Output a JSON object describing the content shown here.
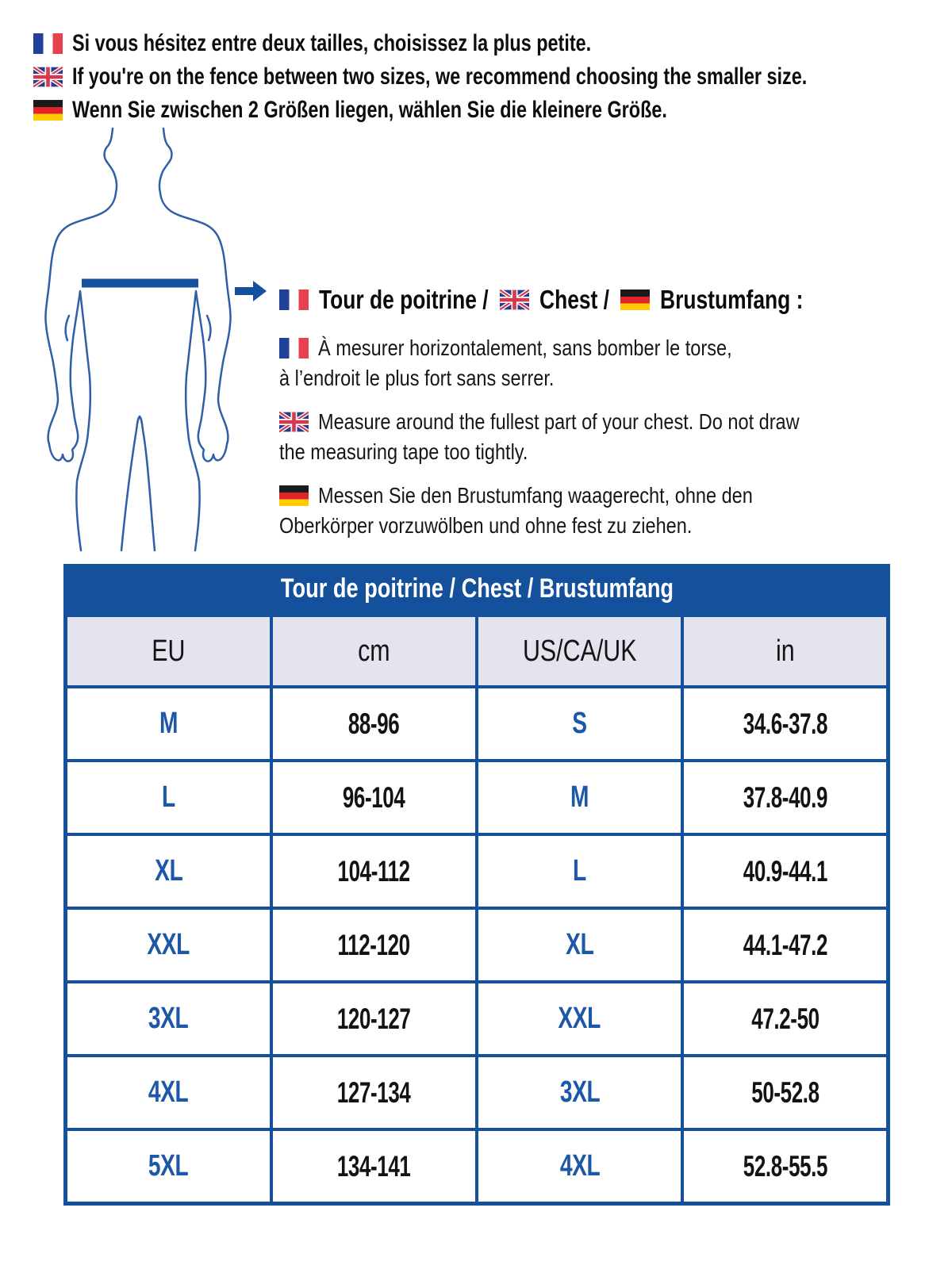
{
  "colors": {
    "table_blue": "#14509b",
    "cell_text_blue": "#1d57a8",
    "header_row_bg": "#e3e4ee",
    "silhouette_stroke": "#2e5fa8",
    "fr_blue": "#21409a",
    "fr_red": "#e8404f",
    "de_black": "#1a1a1a",
    "de_red": "#e1232b",
    "de_gold": "#ffcb00",
    "uk_navy": "#2b3a8c",
    "uk_red": "#d43a4d"
  },
  "icons": {
    "arrow": "right-arrow-icon",
    "figure": "male-body-outline",
    "flags": [
      "france-flag-icon",
      "uk-flag-icon",
      "germany-flag-icon"
    ]
  },
  "notes": [
    {
      "flag": "france",
      "text": "Si vous hésitez entre deux tailles, choisissez la plus petite."
    },
    {
      "flag": "uk",
      "text": "If you're on the fence between two sizes, we recommend choosing the smaller size."
    },
    {
      "flag": "germany",
      "text": "Wenn Sie zwischen 2 Größen liegen, wählen Sie die kleinere Größe."
    }
  ],
  "measure": {
    "title_parts": [
      {
        "flag": "france",
        "text": "Tour de poitrine /"
      },
      {
        "flag": "uk",
        "text": "Chest /"
      },
      {
        "flag": "germany",
        "text": "Brustumfang :"
      }
    ],
    "instructions": [
      {
        "flag": "france",
        "lines": [
          "À mesurer horizontalement, sans bomber le torse,",
          "à l’endroit le plus fort sans serrer."
        ]
      },
      {
        "flag": "uk",
        "lines": [
          "Measure around the fullest part of your chest. Do not draw",
          "the measuring tape too tightly."
        ]
      },
      {
        "flag": "germany",
        "lines": [
          "Messen Sie den Brustumfang waagerecht, ohne den",
          "Oberkörper vorzuwölben und ohne fest zu ziehen."
        ]
      }
    ]
  },
  "chart_data": {
    "type": "table",
    "title": "Tour de poitrine / Chest / Brustumfang",
    "columns": [
      "EU",
      "cm",
      "US/CA/UK",
      "in"
    ],
    "rows": [
      [
        "M",
        "88-96",
        "S",
        "34.6-37.8"
      ],
      [
        "L",
        "96-104",
        "M",
        "37.8-40.9"
      ],
      [
        "XL",
        "104-112",
        "L",
        "40.9-44.1"
      ],
      [
        "XXL",
        "112-120",
        "XL",
        "44.1-47.2"
      ],
      [
        "3XL",
        "120-127",
        "XXL",
        "47.2-50"
      ],
      [
        "4XL",
        "127-134",
        "3XL",
        "50-52.8"
      ],
      [
        "5XL",
        "134-141",
        "4XL",
        "52.8-55.5"
      ]
    ]
  }
}
